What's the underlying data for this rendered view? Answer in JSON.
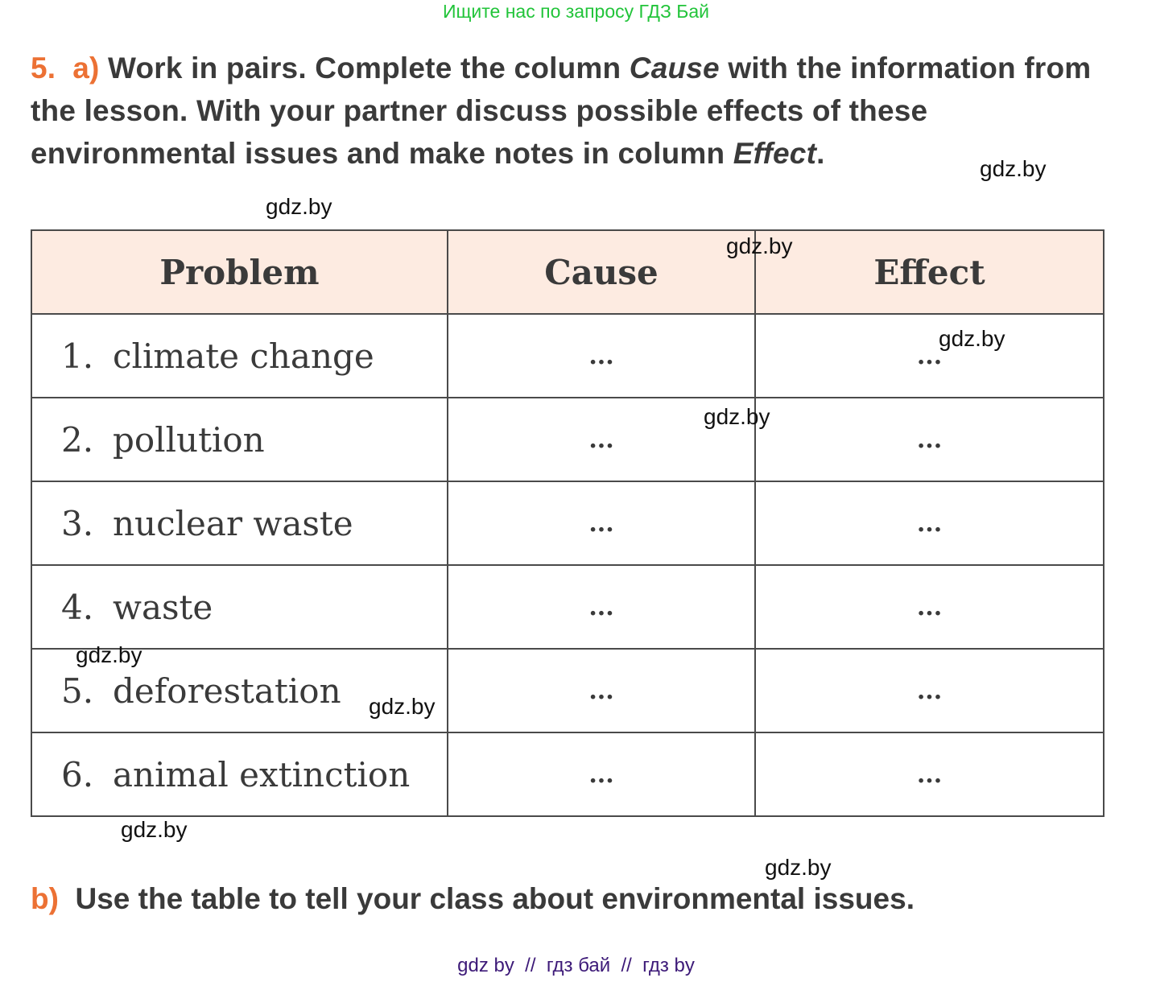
{
  "banner": "Ищите нас по запросу ГДЗ Бай",
  "task_a": {
    "number": "5.",
    "letter": "a)",
    "text_1": "Work in pairs. Complete the column ",
    "italic_1": "Cause",
    "text_2": " with the information from the lesson. With your partner discuss possible effects of these environmental issues and make notes in column ",
    "italic_2": "Effect",
    "text_3": "."
  },
  "table": {
    "headers": [
      "Problem",
      "Cause",
      "Effect"
    ],
    "rows": [
      {
        "num": "1.",
        "problem": "climate change",
        "cause": "...",
        "effect": "..."
      },
      {
        "num": "2.",
        "problem": "pollution",
        "cause": "...",
        "effect": "..."
      },
      {
        "num": "3.",
        "problem": "nuclear waste",
        "cause": "...",
        "effect": "..."
      },
      {
        "num": "4.",
        "problem": "waste",
        "cause": "...",
        "effect": "..."
      },
      {
        "num": "5.",
        "problem": "deforestation",
        "cause": "...",
        "effect": "..."
      },
      {
        "num": "6.",
        "problem": "animal extinction",
        "cause": "...",
        "effect": "..."
      }
    ]
  },
  "task_b": {
    "letter": "b)",
    "text": "Use the table to tell your class about environmental issues."
  },
  "watermark": "gdz.by",
  "footer": "gdz by  //  гдз бай  //  гдз by",
  "colors": {
    "accent": "#ec7134",
    "header_bg": "#fdebe1",
    "banner": "#22c43a",
    "footer": "#3d1a78"
  }
}
